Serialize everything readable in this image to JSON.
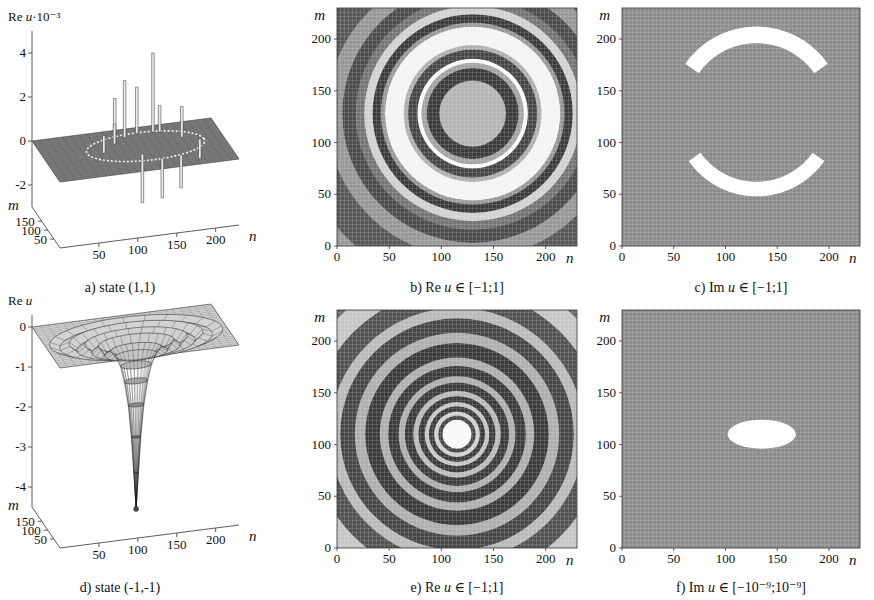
{
  "chart_data": [
    {
      "type": "surface",
      "caption": "a) state (1,1)",
      "zlabel": "Re u·10⁻³",
      "xlabel": "n",
      "ylabel": "m",
      "xlim": [
        0,
        230
      ],
      "xticks": [
        50,
        100,
        150,
        200
      ],
      "ylim": [
        0,
        230
      ],
      "yticks": [
        50,
        100,
        150
      ],
      "zlim": [
        -3,
        5
      ],
      "zticks": [
        -2,
        0,
        2,
        4
      ],
      "plane_value": 0,
      "ring": {
        "center": [
          130,
          128
        ],
        "radius": 75
      },
      "spikes": {
        "n": [
          100,
          112,
          150,
          158,
          165,
          95,
          120,
          180,
          140,
          75,
          200,
          130
        ],
        "m": [
          190,
          185,
          195,
          192,
          60,
          160,
          90,
          150,
          55,
          120,
          130,
          200
        ],
        "values": [
          1.8,
          2.6,
          3.6,
          1.2,
          -1.5,
          0.9,
          -2.2,
          1.4,
          -1.8,
          0.8,
          -0.9,
          2.1
        ]
      }
    },
    {
      "type": "heatmap",
      "caption": "b) Re u ∈ [−1;1]",
      "xlabel": "n",
      "ylabel": "m",
      "xlim": [
        0,
        230
      ],
      "xticks": [
        0,
        50,
        100,
        150,
        200
      ],
      "ylim": [
        0,
        230
      ],
      "yticks": [
        0,
        50,
        100,
        150,
        200
      ],
      "color_range": [
        -1,
        1
      ],
      "background": 0.1,
      "center": [
        130,
        128
      ],
      "rings": {
        "inner": [
          0,
          32,
          44,
          49,
          53,
          62,
          66,
          84,
          88,
          96,
          104,
          112,
          125,
          140
        ],
        "outer": [
          32,
          44,
          49,
          53,
          62,
          66,
          84,
          88,
          96,
          104,
          112,
          125,
          140,
          170
        ],
        "values": [
          0.35,
          -0.7,
          0.2,
          0.95,
          -0.6,
          0.3,
          0.9,
          0.1,
          -0.7,
          0.6,
          -0.2,
          -0.55,
          0.1,
          -0.45
        ]
      }
    },
    {
      "type": "heatmap",
      "caption": "c) Im u ∈ [−1;1]",
      "xlabel": "n",
      "ylabel": "m",
      "xlim": [
        0,
        230
      ],
      "xticks": [
        0,
        50,
        100,
        150,
        200
      ],
      "ylim": [
        0,
        230
      ],
      "yticks": [
        0,
        50,
        100,
        150,
        200
      ],
      "color_range": [
        -1,
        1
      ],
      "background": 0,
      "center": [
        130,
        128
      ],
      "arcs": {
        "inner": [
          68,
          66
        ],
        "outer": [
          84,
          80
        ],
        "start": [
          35,
          215
        ],
        "end": [
          145,
          325
        ],
        "values": [
          1,
          1
        ]
      }
    },
    {
      "type": "surface",
      "caption": "d) state (-1,-1)",
      "zlabel": "Re u",
      "xlabel": "n",
      "ylabel": "m",
      "xlim": [
        0,
        230
      ],
      "xticks": [
        50,
        100,
        150,
        200
      ],
      "ylim": [
        0,
        230
      ],
      "yticks": [
        50,
        100,
        150
      ],
      "zlim": [
        -4.5,
        0.3
      ],
      "zticks": [
        0,
        -1,
        -2,
        -3,
        -4
      ],
      "plane_value": 0,
      "center": [
        115,
        110
      ],
      "profile": {
        "r": [
          0,
          3,
          6,
          10,
          15,
          20,
          26,
          32,
          40,
          48,
          56,
          65,
          75,
          85,
          97,
          110
        ],
        "values": [
          -4.3,
          -3.4,
          -2.5,
          -1.7,
          -1.1,
          -0.7,
          -0.45,
          -0.3,
          -0.4,
          -0.15,
          -0.3,
          -0.08,
          -0.2,
          -0.02,
          -0.1,
          0
        ]
      }
    },
    {
      "type": "heatmap",
      "caption": "e) Re u ∈ [−1;1]",
      "xlabel": "n",
      "ylabel": "m",
      "xlim": [
        0,
        230
      ],
      "xticks": [
        0,
        50,
        100,
        150,
        200
      ],
      "ylim": [
        0,
        230
      ],
      "yticks": [
        0,
        50,
        100,
        150,
        200
      ],
      "color_range": [
        -1,
        1
      ],
      "background": 0.1,
      "center": [
        115,
        110
      ],
      "rings": {
        "inner": [
          0,
          14,
          18,
          22,
          27,
          31,
          37,
          42,
          50,
          56,
          66,
          74,
          88,
          98,
          112,
          122,
          140,
          160
        ],
        "outer": [
          14,
          18,
          22,
          27,
          31,
          37,
          42,
          50,
          56,
          66,
          74,
          88,
          98,
          112,
          122,
          140,
          160,
          190
        ],
        "values": [
          0.95,
          -0.6,
          0.6,
          -0.7,
          0.5,
          -0.7,
          0.4,
          -0.7,
          0.3,
          -0.7,
          0.3,
          -0.7,
          0.3,
          -0.6,
          0.4,
          -0.5,
          0.5,
          -0.3
        ]
      }
    },
    {
      "type": "heatmap",
      "caption": "f) Im u ∈ [−10⁻⁹;10⁻⁹]",
      "xlabel": "n",
      "ylabel": "m",
      "xlim": [
        0,
        230
      ],
      "xticks": [
        0,
        50,
        100,
        150,
        200
      ],
      "ylim": [
        0,
        230
      ],
      "yticks": [
        0,
        50,
        100,
        150,
        200
      ],
      "color_range": [
        -1e-09,
        1e-09
      ],
      "background": 0,
      "blob": {
        "center": [
          135,
          110
        ],
        "radii": [
          33,
          14
        ],
        "value": 1e-09
      }
    }
  ]
}
